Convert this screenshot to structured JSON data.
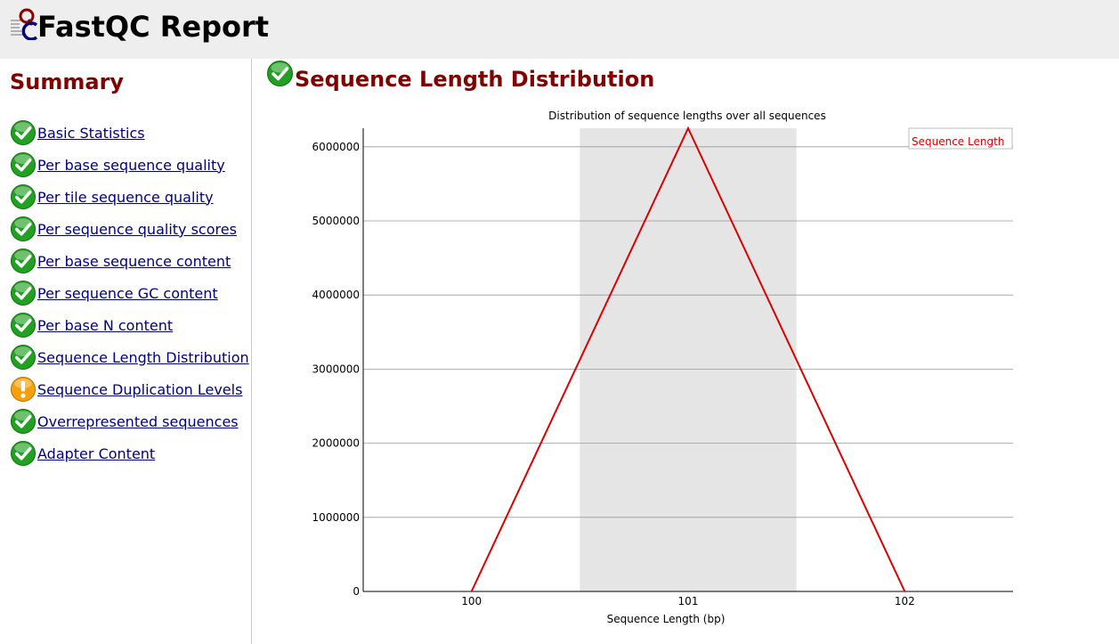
{
  "header": {
    "title": "FastQC Report",
    "logo_icon": "fastqc-logo-icon"
  },
  "sidebar": {
    "title": "Summary",
    "items": [
      {
        "label": "Basic Statistics",
        "status": "pass"
      },
      {
        "label": "Per base sequence quality",
        "status": "pass"
      },
      {
        "label": "Per tile sequence quality",
        "status": "pass"
      },
      {
        "label": "Per sequence quality scores",
        "status": "pass"
      },
      {
        "label": "Per base sequence content",
        "status": "pass"
      },
      {
        "label": "Per sequence GC content",
        "status": "pass"
      },
      {
        "label": "Per base N content",
        "status": "pass"
      },
      {
        "label": "Sequence Length Distribution",
        "status": "pass"
      },
      {
        "label": "Sequence Duplication Levels",
        "status": "warn"
      },
      {
        "label": "Overrepresented sequences",
        "status": "pass"
      },
      {
        "label": "Adapter Content",
        "status": "pass"
      }
    ]
  },
  "main": {
    "module_title": "Sequence Length Distribution",
    "module_status": "pass"
  },
  "colors": {
    "header_bg": "#eeeeee",
    "title_red": "#800000",
    "link_navy": "#000080",
    "line_red": "#dd0000",
    "band_grey": "#e5e5e5",
    "pass_green": "#22a022",
    "warn_orange": "#f5a00a"
  },
  "chart_data": {
    "type": "line",
    "title": "Distribution of sequence lengths over all sequences",
    "xlabel": "Sequence Length (bp)",
    "ylabel": "",
    "x_categories": [
      "100",
      "101",
      "102"
    ],
    "yticks": [
      0,
      1000000,
      2000000,
      3000000,
      4000000,
      5000000,
      6000000
    ],
    "ylim": [
      0,
      6250000
    ],
    "highlight_band": "101",
    "grid": true,
    "legend_position": "top-right",
    "series": [
      {
        "name": "Sequence Length",
        "values": [
          0,
          6250000,
          0
        ]
      }
    ]
  }
}
